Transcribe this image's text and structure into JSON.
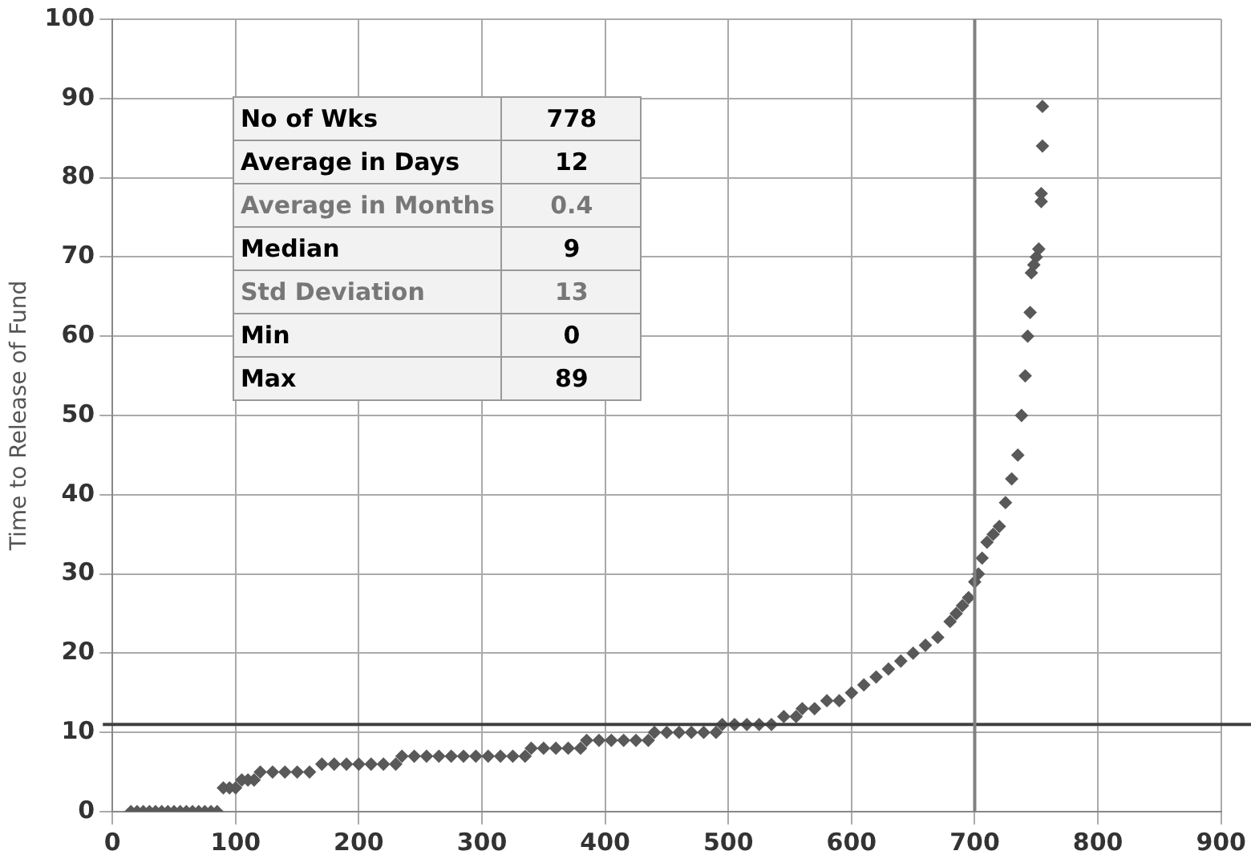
{
  "chart_data": {
    "type": "scatter",
    "ylabel": "Time to Release of Fund",
    "x": [
      15,
      20,
      25,
      30,
      35,
      40,
      45,
      50,
      55,
      60,
      65,
      70,
      75,
      80,
      85,
      90,
      95,
      100,
      105,
      110,
      115,
      120,
      130,
      140,
      150,
      160,
      170,
      180,
      190,
      200,
      210,
      220,
      230,
      235,
      245,
      255,
      265,
      275,
      285,
      295,
      305,
      315,
      325,
      335,
      340,
      350,
      360,
      370,
      380,
      385,
      395,
      405,
      415,
      425,
      435,
      440,
      450,
      460,
      470,
      480,
      490,
      495,
      505,
      515,
      525,
      535,
      545,
      555,
      560,
      570,
      580,
      590,
      600,
      610,
      620,
      630,
      640,
      650,
      660,
      670,
      680,
      685,
      690,
      695,
      700,
      703,
      706,
      710,
      715,
      720,
      725,
      730,
      735,
      738,
      741,
      743,
      745,
      746,
      748,
      750,
      752,
      754,
      754,
      755,
      755
    ],
    "series": [
      {
        "color": "#595959",
        "values": [
          0,
          0,
          0,
          0,
          0,
          0,
          0,
          0,
          0,
          0,
          0,
          0,
          0,
          0,
          0,
          3,
          3,
          3,
          4,
          4,
          4,
          5,
          5,
          5,
          5,
          5,
          6,
          6,
          6,
          6,
          6,
          6,
          6,
          7,
          7,
          7,
          7,
          7,
          7,
          7,
          7,
          7,
          7,
          7,
          8,
          8,
          8,
          8,
          8,
          9,
          9,
          9,
          9,
          9,
          9,
          10,
          10,
          10,
          10,
          10,
          10,
          11,
          11,
          11,
          11,
          11,
          12,
          12,
          13,
          13,
          14,
          14,
          15,
          16,
          17,
          18,
          19,
          20,
          21,
          22,
          24,
          25,
          26,
          27,
          29,
          30,
          32,
          34,
          35,
          36,
          39,
          42,
          45,
          50,
          55,
          60,
          63,
          68,
          69,
          70,
          71,
          77,
          78,
          84,
          89
        ]
      }
    ],
    "marker": "diamond",
    "legend": false,
    "grid": true,
    "xlim": [
      0,
      900
    ],
    "xticks": [
      0,
      100,
      200,
      300,
      400,
      500,
      600,
      700,
      800,
      900
    ],
    "ylim": [
      0,
      100
    ],
    "yticks": [
      0,
      10,
      20,
      30,
      40,
      50,
      60,
      70,
      80,
      90,
      100
    ],
    "ref_lines": [
      {
        "axis": "y",
        "value": 11,
        "color": "#404040"
      },
      {
        "axis": "x",
        "value": 700,
        "color": "#808080"
      }
    ],
    "annotations": [
      "No of Wks",
      "778",
      "Average  in Days",
      "12",
      "Average in Months",
      "0.4",
      "Median",
      "9",
      "Std Deviation",
      "13",
      "Min",
      "0",
      "Max",
      "89"
    ]
  }
}
